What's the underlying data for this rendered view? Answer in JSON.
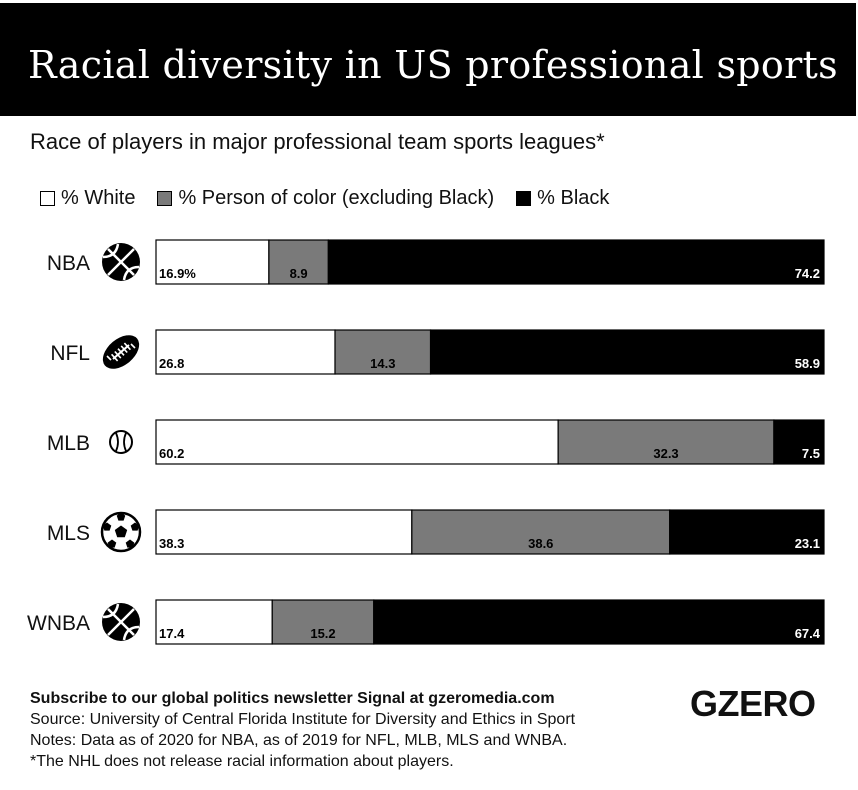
{
  "title": "Racial diversity in US professional sports",
  "subtitle": "Race of players in major professional team sports leagues*",
  "legend": [
    {
      "label": "% White",
      "color": "#ffffff"
    },
    {
      "label": "% Person of color (excluding Black)",
      "color": "#7a7a7a"
    },
    {
      "label": "% Black",
      "color": "#000000"
    }
  ],
  "chart_data": {
    "type": "bar",
    "orientation": "horizontal",
    "stacked": true,
    "categories": [
      "NBA",
      "NFL",
      "MLB",
      "MLS",
      "WNBA"
    ],
    "category_icons": [
      "basketball-icon",
      "football-icon",
      "baseball-icon",
      "soccer-ball-icon",
      "basketball-icon"
    ],
    "series": [
      {
        "name": "% White",
        "color": "#ffffff",
        "values": [
          16.9,
          26.8,
          60.2,
          38.3,
          17.4
        ],
        "labels": [
          "16.9%",
          "26.8",
          "60.2",
          "38.3",
          "17.4"
        ]
      },
      {
        "name": "% Person of color (excluding Black)",
        "color": "#7a7a7a",
        "values": [
          8.9,
          14.3,
          32.3,
          38.6,
          15.2
        ],
        "labels": [
          "8.9",
          "14.3",
          "32.3",
          "38.6",
          "15.2"
        ]
      },
      {
        "name": "% Black",
        "color": "#000000",
        "values": [
          74.2,
          58.9,
          7.5,
          23.1,
          67.4
        ],
        "labels": [
          "74.2",
          "58.9",
          "7.5",
          "23.1",
          "67.4"
        ]
      }
    ],
    "xlim": [
      0,
      100
    ],
    "legend_position": "top-left",
    "grid": false
  },
  "footer": {
    "subscribe": "Subscribe to our global politics newsletter Signal at gzeromedia.com",
    "source": "Source: University of Central Florida Institute for Diversity and Ethics in Sport",
    "notes": "Notes: Data as of 2020 for NBA, as of 2019 for NFL, MLB, MLS and WNBA.",
    "nhl_note": "*The NHL does not release racial information about players."
  },
  "logo": "GZERO"
}
